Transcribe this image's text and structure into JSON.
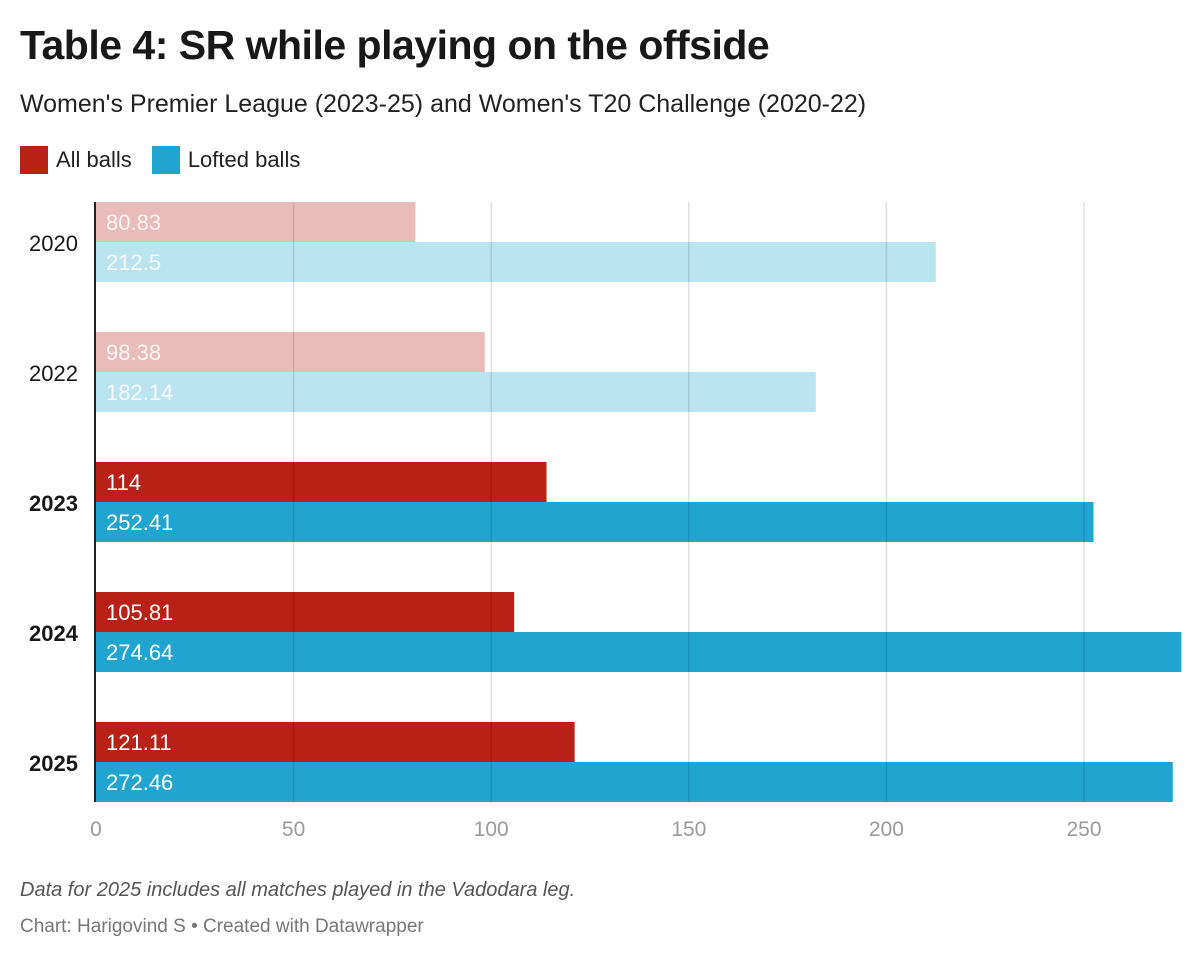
{
  "chart_data": {
    "type": "bar",
    "orientation": "horizontal",
    "title": "Table 4: SR while playing on the offside",
    "subtitle": "Women's Premier League (2023-25) and Women's T20 Challenge (2020-22)",
    "categories": [
      "2020",
      "2022",
      "2023",
      "2024",
      "2025"
    ],
    "highlighted": [
      false,
      false,
      true,
      true,
      true
    ],
    "series": [
      {
        "name": "All balls",
        "color": "#b92016",
        "values": [
          80.83,
          98.38,
          114,
          105.81,
          121.11
        ],
        "labels": [
          "80.83",
          "98.38",
          "114",
          "105.81",
          "121.11"
        ]
      },
      {
        "name": "Lofted balls",
        "color": "#1fa5cf",
        "values": [
          212.5,
          182.14,
          252.41,
          274.64,
          272.46
        ],
        "labels": [
          "212.5",
          "182.14",
          "252.41",
          "274.64",
          "272.46"
        ]
      }
    ],
    "xlim": [
      0,
      275
    ],
    "xticks": [
      "0",
      "50",
      "100",
      "150",
      "200",
      "250"
    ],
    "grid": true,
    "legend_position": "top-left",
    "note": "Data for 2025 includes all matches played in the Vadodara leg.",
    "credit": "Chart: Harigovind S • Created with Datawrapper"
  }
}
